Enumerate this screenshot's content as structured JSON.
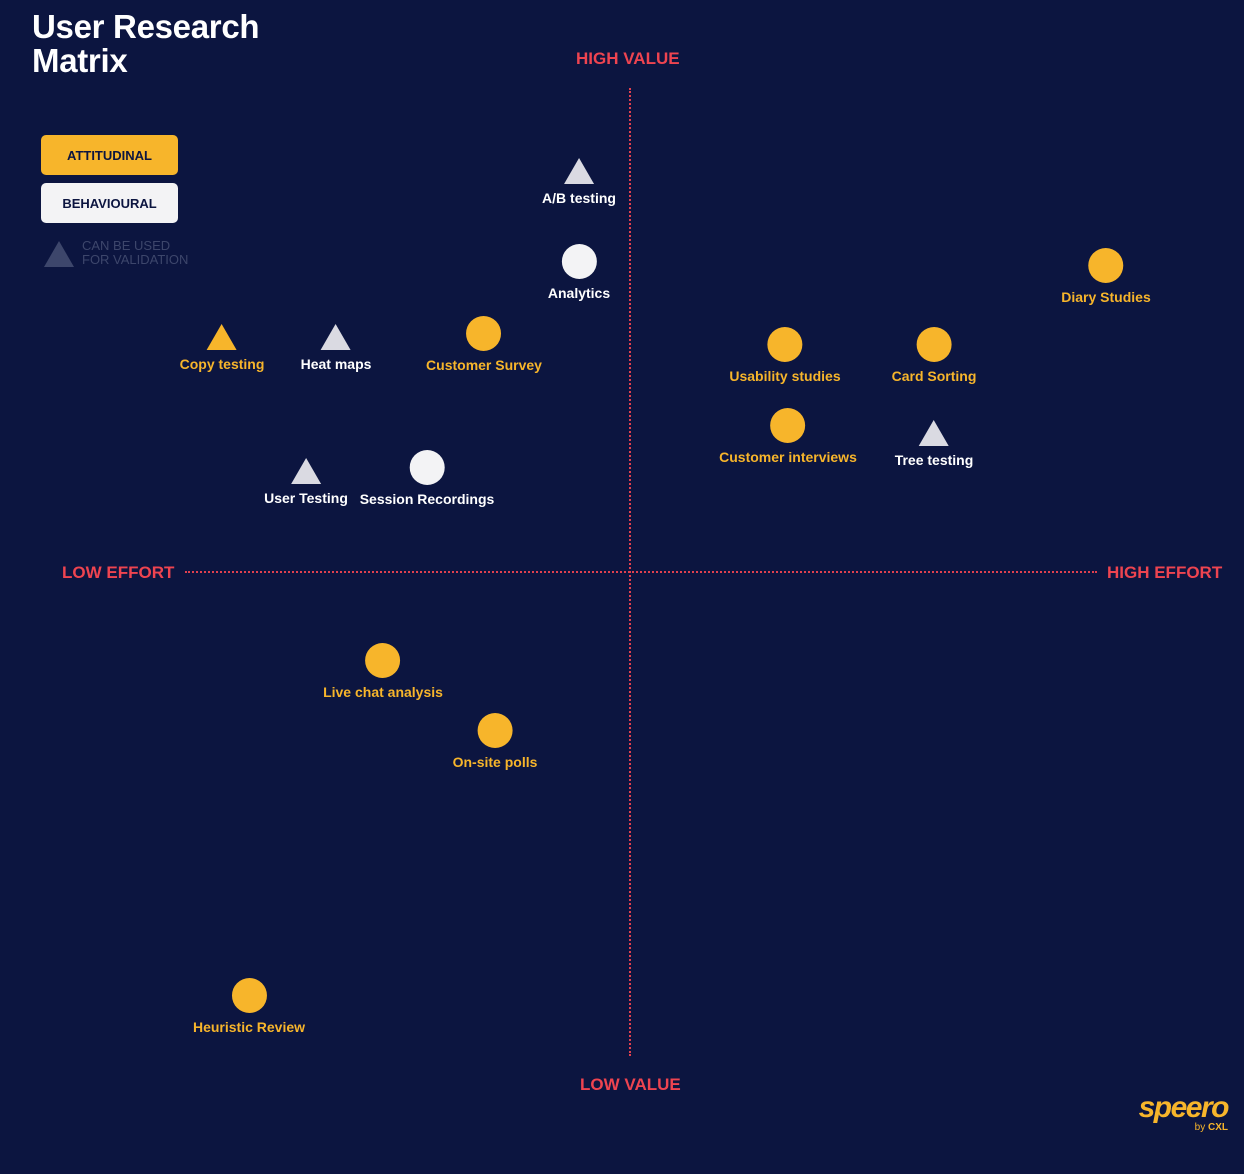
{
  "title": {
    "line1": "User Research",
    "line2": "Matrix"
  },
  "legend": {
    "attitudinal": "ATTITUDINAL",
    "behavioural": "BEHAVIOURAL",
    "validation": "CAN BE USED\nFOR VALIDATION",
    "attitudinal_color": "#f7b52b",
    "behavioural_color": "#f3f3f5"
  },
  "axes": {
    "top": "HIGH VALUE",
    "bottom": "LOW VALUE",
    "left": "LOW EFFORT",
    "right": "HIGH EFFORT",
    "axis_color": "#ee4450"
  },
  "items": [
    {
      "label": "A/B testing",
      "type": "behavioural",
      "shape": "triangle"
    },
    {
      "label": "Analytics",
      "type": "behavioural",
      "shape": "circle"
    },
    {
      "label": "Diary Studies",
      "type": "attitudinal",
      "shape": "circle"
    },
    {
      "label": "Copy testing",
      "type": "attitudinal",
      "shape": "triangle"
    },
    {
      "label": "Heat maps",
      "type": "behavioural",
      "shape": "triangle"
    },
    {
      "label": "Customer Survey",
      "type": "attitudinal",
      "shape": "circle"
    },
    {
      "label": "Usability studies",
      "type": "attitudinal",
      "shape": "circle"
    },
    {
      "label": "Card Sorting",
      "type": "attitudinal",
      "shape": "circle"
    },
    {
      "label": "Customer interviews",
      "type": "attitudinal",
      "shape": "circle"
    },
    {
      "label": "Tree testing",
      "type": "behavioural",
      "shape": "triangle"
    },
    {
      "label": "User Testing",
      "type": "behavioural",
      "shape": "triangle"
    },
    {
      "label": "Session Recordings",
      "type": "behavioural",
      "shape": "circle"
    },
    {
      "label": "Live chat analysis",
      "type": "attitudinal",
      "shape": "circle"
    },
    {
      "label": "On-site polls",
      "type": "attitudinal",
      "shape": "circle"
    },
    {
      "label": "Heuristic Review",
      "type": "attitudinal",
      "shape": "circle"
    }
  ],
  "logo": {
    "brand": "speero",
    "by": "by",
    "by_brand": "CXL"
  }
}
